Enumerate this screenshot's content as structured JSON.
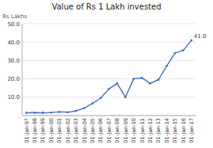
{
  "chart_data": {
    "type": "line",
    "title": "Value of Rs 1 Lakh invested",
    "y_label": "Rs Lakhs",
    "annotation": "41.0",
    "categories": [
      "01-Jan-97",
      "01-Jan-98",
      "01-Jan-99",
      "01-Jan-00",
      "01-Jan-01",
      "01-Jan-02",
      "01-Jan-03",
      "01-Jan-04",
      "01-Jan-05",
      "01-Jan-06",
      "01-Jan-07",
      "01-Jan-08",
      "01-Jan-09",
      "01-Jan-10",
      "01-Jan-11",
      "01-Jan-12",
      "01-Jan-13",
      "01-Jan-14",
      "01-Jan-15",
      "01-Jan-16",
      "01-Jan-17"
    ],
    "values": [
      1.5,
      1.6,
      1.5,
      1.6,
      2.0,
      1.8,
      2.5,
      4.0,
      6.5,
      9.5,
      14.5,
      17.5,
      10.0,
      20.0,
      20.5,
      17.5,
      19.5,
      27.0,
      34.0,
      35.5,
      41.0
    ],
    "color": "#4472c4",
    "marker": "circle",
    "ylim": [
      0,
      50
    ],
    "yticks": [
      {
        "value": 0,
        "label": "."
      },
      {
        "value": 10,
        "label": "10.0"
      },
      {
        "value": 20,
        "label": "20.0"
      },
      {
        "value": 30,
        "label": "30.0"
      },
      {
        "value": 40,
        "label": "40.0"
      },
      {
        "value": 50,
        "label": "50.0"
      }
    ],
    "grid": true
  }
}
